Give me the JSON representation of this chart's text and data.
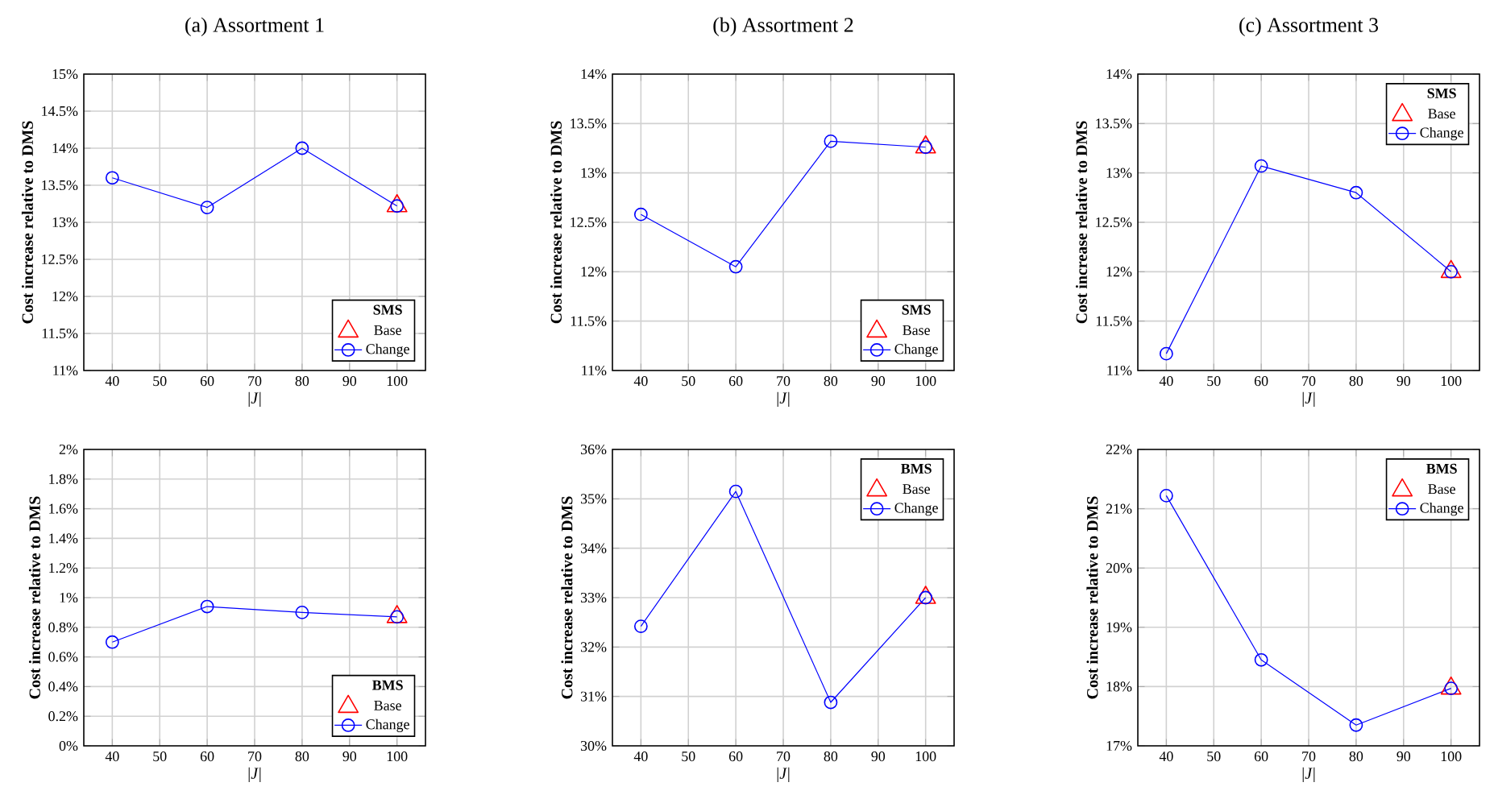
{
  "chart_data": [
    {
      "type": "line",
      "title": "(a) Assortment 1",
      "xlabel": "|*J*|",
      "ylabel": "**Cost increase relative to DMS**",
      "xlim": [
        34,
        106
      ],
      "xticks": [
        40,
        50,
        60,
        70,
        80,
        90,
        100
      ],
      "ylim": [
        11,
        15
      ],
      "yticks": [
        {
          "value": 11,
          "label": "11%"
        },
        {
          "value": 11.5,
          "label": "11.5%"
        },
        {
          "value": 12,
          "label": "12%"
        },
        {
          "value": 12.5,
          "label": "12.5%"
        },
        {
          "value": 13,
          "label": "13%"
        },
        {
          "value": 13.5,
          "label": "13.5%"
        },
        {
          "value": 14,
          "label": "14%"
        },
        {
          "value": 14.5,
          "label": "14.5%"
        },
        {
          "value": 15,
          "label": "15%"
        }
      ],
      "grid": true,
      "legend": "bottom right",
      "legend_title": "**SMS**",
      "series": [
        {
          "name": "Base",
          "type": "scatter",
          "marker": "triangle",
          "color": "#ff0000",
          "x": [
            100
          ],
          "values": [
            13.22
          ]
        },
        {
          "name": "Change",
          "type": "line",
          "marker": "circle",
          "color": "#0000ff",
          "x": [
            40,
            60,
            80,
            100
          ],
          "values": [
            13.6,
            13.2,
            14.0,
            13.22
          ]
        }
      ]
    },
    {
      "type": "line",
      "title": "(b) Assortment 2",
      "xlabel": "|*J*|",
      "ylabel": "**Cost increase relative to DMS**",
      "xlim": [
        34,
        106
      ],
      "xticks": [
        40,
        50,
        60,
        70,
        80,
        90,
        100
      ],
      "ylim": [
        11,
        14
      ],
      "yticks": [
        {
          "value": 11,
          "label": "11%"
        },
        {
          "value": 11.5,
          "label": "11.5%"
        },
        {
          "value": 12,
          "label": "12%"
        },
        {
          "value": 12.5,
          "label": "12.5%"
        },
        {
          "value": 13,
          "label": "13%"
        },
        {
          "value": 13.5,
          "label": "13.5%"
        },
        {
          "value": 14,
          "label": "14%"
        }
      ],
      "grid": true,
      "legend": "bottom right",
      "legend_title": "**SMS**",
      "series": [
        {
          "name": "Base",
          "type": "scatter",
          "marker": "triangle",
          "color": "#ff0000",
          "x": [
            100
          ],
          "values": [
            13.26
          ]
        },
        {
          "name": "Change",
          "type": "line",
          "marker": "circle",
          "color": "#0000ff",
          "x": [
            40,
            60,
            80,
            100
          ],
          "values": [
            12.58,
            12.05,
            13.32,
            13.26
          ]
        }
      ]
    },
    {
      "type": "line",
      "title": "(c) Assortment 3",
      "xlabel": "|*J*|",
      "ylabel": "**Cost increase relative to DMS**",
      "xlim": [
        34,
        106
      ],
      "xticks": [
        40,
        50,
        60,
        70,
        80,
        90,
        100
      ],
      "ylim": [
        11,
        14
      ],
      "yticks": [
        {
          "value": 11,
          "label": "11%"
        },
        {
          "value": 11.5,
          "label": "11.5%"
        },
        {
          "value": 12,
          "label": "12%"
        },
        {
          "value": 12.5,
          "label": "12.5%"
        },
        {
          "value": 13,
          "label": "13%"
        },
        {
          "value": 13.5,
          "label": "13.5%"
        },
        {
          "value": 14,
          "label": "14%"
        }
      ],
      "grid": true,
      "legend": "top right",
      "legend_title": "**SMS**",
      "series": [
        {
          "name": "Base",
          "type": "scatter",
          "marker": "triangle",
          "color": "#ff0000",
          "x": [
            100
          ],
          "values": [
            12.0
          ]
        },
        {
          "name": "Change",
          "type": "line",
          "marker": "circle",
          "color": "#0000ff",
          "x": [
            40,
            60,
            80,
            100
          ],
          "values": [
            11.17,
            13.07,
            12.8,
            12.0
          ]
        }
      ]
    },
    {
      "type": "line",
      "xlabel": "|*J*|",
      "ylabel": "**Cost increase relative to DMS**",
      "xlim": [
        34,
        106
      ],
      "xticks": [
        40,
        50,
        60,
        70,
        80,
        90,
        100
      ],
      "ylim": [
        0,
        2
      ],
      "yticks": [
        {
          "value": 0,
          "label": "0%"
        },
        {
          "value": 0.2,
          "label": "0.2%"
        },
        {
          "value": 0.4,
          "label": "0.4%"
        },
        {
          "value": 0.6,
          "label": "0.6%"
        },
        {
          "value": 0.8,
          "label": "0.8%"
        },
        {
          "value": 1,
          "label": "1%"
        },
        {
          "value": 1.2,
          "label": "1.2%"
        },
        {
          "value": 1.4,
          "label": "1.4%"
        },
        {
          "value": 1.6,
          "label": "1.6%"
        },
        {
          "value": 1.8,
          "label": "1.8%"
        },
        {
          "value": 2,
          "label": "2%"
        }
      ],
      "grid": true,
      "legend": "bottom right",
      "legend_title": "**BMS**",
      "series": [
        {
          "name": "Base",
          "type": "scatter",
          "marker": "triangle",
          "color": "#ff0000",
          "x": [
            100
          ],
          "values": [
            0.87
          ]
        },
        {
          "name": "Change",
          "type": "line",
          "marker": "circle",
          "color": "#0000ff",
          "x": [
            40,
            60,
            80,
            100
          ],
          "values": [
            0.7,
            0.94,
            0.9,
            0.87
          ]
        }
      ]
    },
    {
      "type": "line",
      "xlabel": "|*J*|",
      "ylabel": "**Cost increase relative to DMS**",
      "xlim": [
        34,
        106
      ],
      "xticks": [
        40,
        50,
        60,
        70,
        80,
        90,
        100
      ],
      "ylim": [
        30,
        36
      ],
      "yticks": [
        {
          "value": 30,
          "label": "30%"
        },
        {
          "value": 31,
          "label": "31%"
        },
        {
          "value": 32,
          "label": "32%"
        },
        {
          "value": 33,
          "label": "33%"
        },
        {
          "value": 34,
          "label": "34%"
        },
        {
          "value": 35,
          "label": "35%"
        },
        {
          "value": 36,
          "label": "36%"
        }
      ],
      "grid": true,
      "legend": "top right",
      "legend_title": "**BMS**",
      "series": [
        {
          "name": "Base",
          "type": "scatter",
          "marker": "triangle",
          "color": "#ff0000",
          "x": [
            100
          ],
          "values": [
            33.0
          ]
        },
        {
          "name": "Change",
          "type": "line",
          "marker": "circle",
          "color": "#0000ff",
          "x": [
            40,
            60,
            80,
            100
          ],
          "values": [
            32.42,
            35.15,
            30.88,
            33.0
          ]
        }
      ]
    },
    {
      "type": "line",
      "xlabel": "|*J*|",
      "ylabel": "**Cost increase relative to DMS**",
      "xlim": [
        34,
        106
      ],
      "xticks": [
        40,
        50,
        60,
        70,
        80,
        90,
        100
      ],
      "ylim": [
        17,
        22
      ],
      "yticks": [
        {
          "value": 17,
          "label": "17%"
        },
        {
          "value": 18,
          "label": "18%"
        },
        {
          "value": 19,
          "label": "19%"
        },
        {
          "value": 20,
          "label": "20%"
        },
        {
          "value": 21,
          "label": "21%"
        },
        {
          "value": 22,
          "label": "22%"
        }
      ],
      "grid": true,
      "legend": "top right",
      "legend_title": "**BMS**",
      "series": [
        {
          "name": "Base",
          "type": "scatter",
          "marker": "triangle",
          "color": "#ff0000",
          "x": [
            100
          ],
          "values": [
            17.97
          ]
        },
        {
          "name": "Change",
          "type": "line",
          "marker": "circle",
          "color": "#0000ff",
          "x": [
            40,
            60,
            80,
            100
          ],
          "values": [
            21.22,
            18.45,
            17.35,
            17.97
          ]
        }
      ]
    }
  ]
}
